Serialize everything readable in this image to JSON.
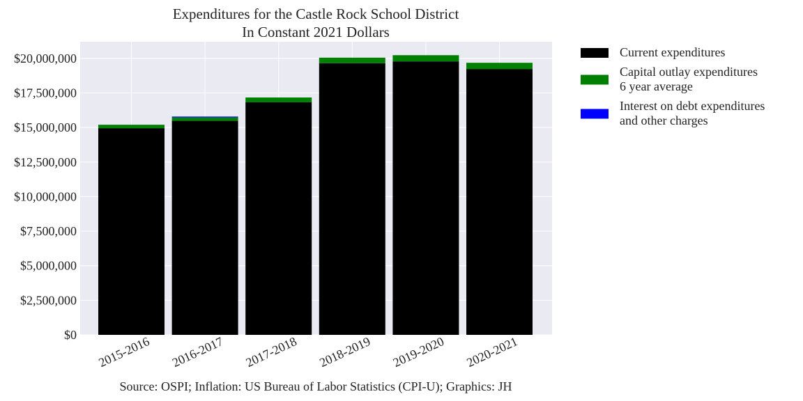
{
  "chart_data": {
    "type": "bar",
    "stacked": true,
    "title": [
      "Expenditures for the Castle Rock School District",
      "In Constant 2021 Dollars"
    ],
    "categories": [
      "2015-2016",
      "2016-2017",
      "2017-2018",
      "2018-2019",
      "2019-2020",
      "2020-2021"
    ],
    "series": [
      {
        "name": "Current expenditures",
        "color": "#000000",
        "values": [
          14950000,
          15480000,
          16820000,
          19650000,
          19780000,
          19230000
        ]
      },
      {
        "name": "Capital outlay expenditures\n6 year average",
        "color": "#008000",
        "values": [
          250000,
          250000,
          350000,
          400000,
          450000,
          450000
        ]
      },
      {
        "name": "Interest on debt expenditures\nand other charges",
        "color": "#0000ff",
        "values": [
          0,
          60000,
          0,
          0,
          0,
          0
        ]
      }
    ],
    "yticks": [
      "$0",
      "$2,500,000",
      "$5,000,000",
      "$7,500,000",
      "$10,000,000",
      "$12,500,000",
      "$15,000,000",
      "$17,500,000",
      "$20,000,000"
    ],
    "ylim": [
      0,
      21200000
    ],
    "xlabel": "",
    "ylabel": "",
    "grid": true,
    "legend_placement": "outside-top-right",
    "background_color": "#eaeaf2",
    "source_note": "Source: OSPI; Inflation: US Bureau of Labor Statistics (CPI-U); Graphics: JH"
  }
}
